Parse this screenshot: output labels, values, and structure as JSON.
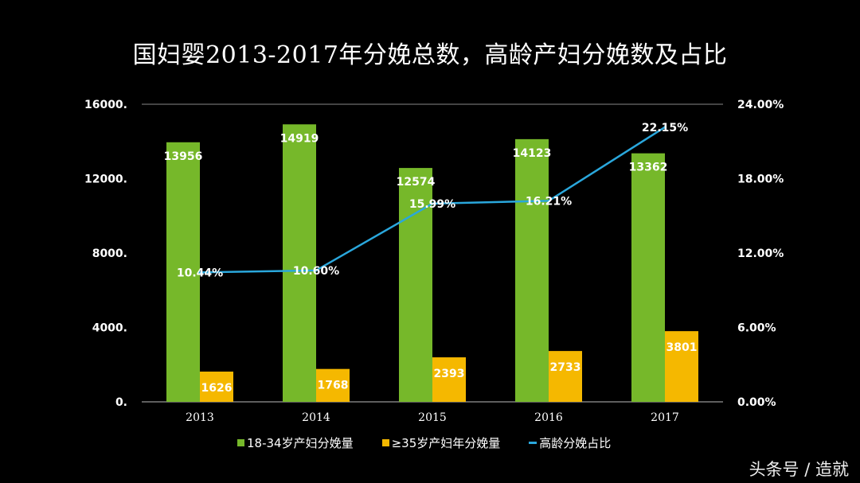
{
  "chart_data": {
    "type": "bar",
    "title": "国妇婴2013-2017年分娩总数，高龄产妇分娩数及占比",
    "categories": [
      "2013",
      "2014",
      "2015",
      "2016",
      "2017"
    ],
    "series": [
      {
        "name": "18-34岁产妇分娩量",
        "type": "bar",
        "axis": "left",
        "color": "#76b82a",
        "values": [
          13956,
          14919,
          12574,
          14123,
          13362
        ],
        "labels": [
          "13956",
          "14919",
          "12574",
          "14123",
          "13362"
        ]
      },
      {
        "name": "≥35岁产妇年分娩量",
        "type": "bar",
        "axis": "left",
        "color": "#f5b800",
        "values": [
          1626,
          1768,
          2393,
          2733,
          3801
        ],
        "labels": [
          "1626",
          "1768",
          "2393",
          "2733",
          "3801"
        ]
      },
      {
        "name": "高龄分娩占比",
        "type": "line",
        "axis": "right",
        "color": "#2aa7dc",
        "values": [
          10.44,
          10.6,
          15.99,
          16.21,
          22.15
        ],
        "labels": [
          "10.44%",
          "10.60%",
          "15.99%",
          "16.21%",
          "22.15%"
        ]
      }
    ],
    "ylim": [
      0,
      16000
    ],
    "y2lim": [
      0,
      24
    ],
    "yticks": [
      "0.",
      "4000.",
      "8000.",
      "12000.",
      "16000."
    ],
    "y2ticks": [
      "0.00%",
      "6.00%",
      "12.00%",
      "18.00%",
      "24.00%"
    ],
    "legend_position": "bottom",
    "grid": false
  },
  "watermark": "头条号 / 造就"
}
